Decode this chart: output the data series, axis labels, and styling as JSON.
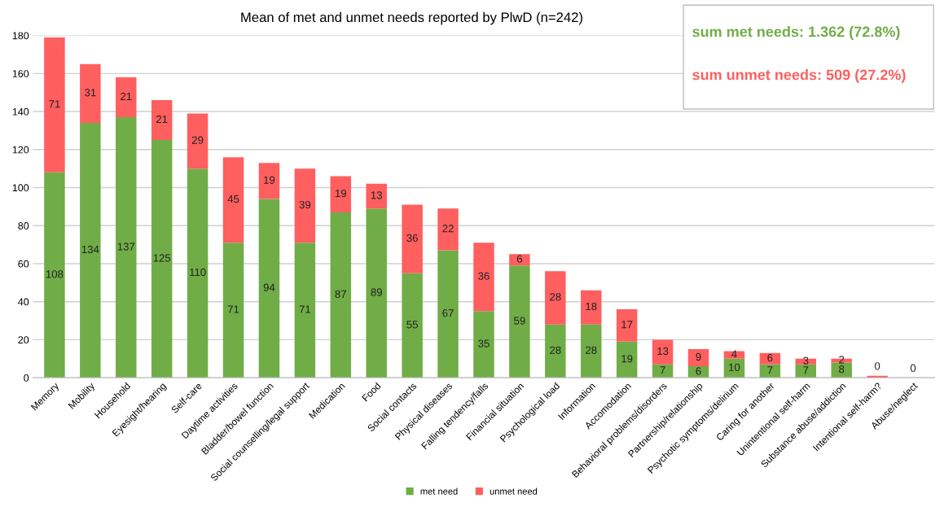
{
  "chart_data": {
    "type": "bar",
    "stacked": true,
    "title": "Mean of met and unmet needs reported by PlwD (n=242)",
    "categories": [
      "Memory",
      "Mobility",
      "Household",
      "Eyesight/hearing",
      "Self-care",
      "Daytime activities",
      "Bladder/bowel function",
      "Social counselling/legal support",
      "Medication",
      "Food",
      "Social contacts",
      "Physical diseases",
      "Falling tendency/falls",
      "Financial situation",
      "Psychological load",
      "Information",
      "Accomodation",
      "Behavioral problems/disorders",
      "Partnership/relationship",
      "Psychotic symptoms/delirium",
      "Caring for another",
      "Unintentional self-harm",
      "Substance abuse/addiction",
      "Intentional self-harm?",
      "Abuse/neglect"
    ],
    "series": [
      {
        "name": "met need",
        "color": "#70ad47",
        "values": [
          108,
          134,
          137,
          125,
          110,
          71,
          94,
          71,
          87,
          89,
          55,
          67,
          35,
          59,
          28,
          28,
          19,
          7,
          6,
          10,
          7,
          7,
          8,
          0,
          0
        ],
        "value_labels": [
          "108",
          "134",
          "137",
          "125",
          "110",
          "71",
          "94",
          "71",
          "87",
          "89",
          "55",
          "67",
          "35",
          "59",
          "28",
          "28",
          "19",
          "7",
          "6",
          "10",
          "7",
          "7",
          "8",
          "0",
          "0"
        ]
      },
      {
        "name": "unmet need",
        "color": "#ff5f5f",
        "values": [
          71,
          31,
          21,
          21,
          29,
          45,
          19,
          39,
          19,
          13,
          36,
          22,
          36,
          6,
          28,
          18,
          17,
          13,
          9,
          4,
          6,
          3,
          2,
          1,
          0
        ],
        "value_labels": [
          "71",
          "31",
          "21",
          "21",
          "29",
          "45",
          "19",
          "39",
          "19",
          "13",
          "36",
          "22",
          "36",
          "6",
          "28",
          "18",
          "17",
          "13",
          "9",
          "4",
          "6",
          "3",
          "2",
          null,
          null
        ]
      }
    ],
    "ylim": [
      0,
      180
    ],
    "yticks": [
      0,
      20,
      40,
      60,
      80,
      100,
      120,
      140,
      160,
      180
    ],
    "grid": "y",
    "legend": "bottom",
    "annotations": [
      "sum met needs: 1.362 (72.8%)",
      "sum unmet needs: 509 (27.2%)"
    ]
  }
}
